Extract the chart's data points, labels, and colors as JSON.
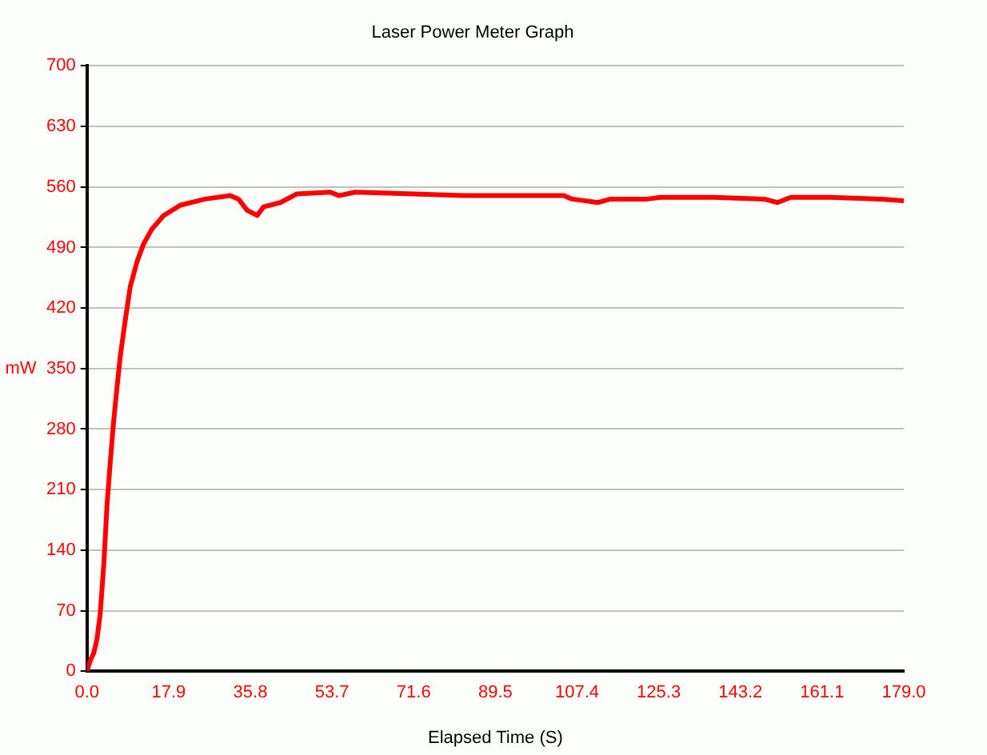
{
  "chart_data": {
    "type": "line",
    "title": "Laser Power Meter Graph",
    "xlabel": "Elapsed Time (S)",
    "ylabel": "mW",
    "x": [
      0,
      0.7,
      1.5,
      2.2,
      2.9,
      3.7,
      4.4,
      5.1,
      5.8,
      6.6,
      7.3,
      8.4,
      9.5,
      11,
      12.4,
      14.2,
      16.8,
      20.5,
      25.9,
      31.4,
      33.2,
      35.1,
      37.3,
      38.7,
      42.4,
      46,
      53.3,
      55.2,
      58.8,
      71.6,
      82.6,
      104.5,
      106.3,
      112,
      114.7,
      122.8,
      125.7,
      137.4,
      148.4,
      151.3,
      154.2,
      163,
      174,
      179
    ],
    "series": [
      {
        "color": "#ff0000",
        "values": [
          0,
          12,
          21,
          37,
          66,
          124,
          192,
          241,
          286,
          329,
          364,
          406,
          445,
          474,
          494,
          511,
          527,
          539,
          546,
          550,
          546,
          533,
          527,
          537,
          542,
          552,
          554,
          550,
          554,
          552,
          550,
          550,
          546,
          542,
          546,
          546,
          548,
          548,
          546,
          542,
          548,
          548,
          546,
          544
        ]
      }
    ],
    "xlim": [
      0,
      179
    ],
    "xticks": [
      {
        "value": 0,
        "label": "0.0"
      },
      17.9,
      35.8,
      53.7,
      71.6,
      89.5,
      107.4,
      125.3,
      143.2,
      161.1,
      {
        "value": 179,
        "label": "179.0"
      }
    ],
    "ylim": [
      0,
      700
    ],
    "yticks": [
      0,
      70,
      140,
      210,
      280,
      350,
      420,
      490,
      560,
      630,
      700
    ],
    "grid": "y",
    "legend": false,
    "marker": "none",
    "line_style": "solid"
  }
}
